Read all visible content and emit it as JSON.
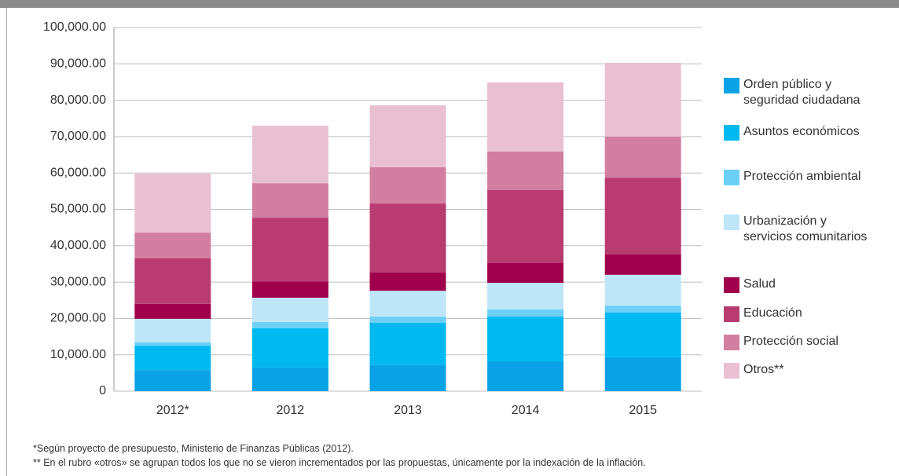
{
  "chart_data": {
    "type": "stacked_bar",
    "categories": [
      "2012*",
      "2012",
      "2013",
      "2014",
      "2015"
    ],
    "series": [
      {
        "name": "Orden público y seguridad ciudadana",
        "color": "#0aa2e6",
        "values": [
          5800,
          6500,
          7300,
          8200,
          9300
        ]
      },
      {
        "name": "Asuntos económicos",
        "color": "#00b9f0",
        "values": [
          6700,
          10800,
          11500,
          12300,
          12300
        ]
      },
      {
        "name": "Protección ambiental",
        "color": "#6ccff5",
        "values": [
          900,
          1700,
          1700,
          2000,
          1900
        ]
      },
      {
        "name": "Urbanización y servicios comunitarios",
        "color": "#bee6f8",
        "values": [
          6500,
          6700,
          7100,
          7300,
          8500
        ]
      },
      {
        "name": "Salud",
        "color": "#a0004b",
        "values": [
          4100,
          4500,
          5000,
          5400,
          5600
        ]
      },
      {
        "name": "Educación",
        "color": "#b83c70",
        "values": [
          12500,
          17500,
          19000,
          20100,
          21100
        ]
      },
      {
        "name": "Protección social",
        "color": "#d27ea1",
        "values": [
          7100,
          9500,
          10000,
          10600,
          11300
        ]
      },
      {
        "name": "Otros**",
        "color": "#e9c0d2",
        "values": [
          16200,
          15800,
          17000,
          19000,
          20300
        ]
      }
    ],
    "ylim": [
      0,
      100000
    ],
    "yticks": [
      0,
      {
        "value": 10000,
        "label": "10,000.00"
      },
      {
        "value": 20000,
        "label": "20,000.00"
      },
      {
        "value": 30000,
        "label": "30,000.00"
      },
      {
        "value": 40000,
        "label": "40,000.00"
      },
      {
        "value": 50000,
        "label": "50,000.00"
      },
      {
        "value": 60000,
        "label": "60,000.00"
      },
      {
        "value": 70000,
        "label": "70,000.00"
      },
      {
        "value": 80000,
        "label": "80,000.00"
      },
      {
        "value": 90000,
        "label": "90,000.00"
      },
      {
        "value": 100000,
        "label": "100,000.00"
      }
    ],
    "grid": true,
    "legend": "right",
    "annotations": [
      "*Según proyecto de presupuesto, Ministerio de Finanzas Públicas (2012).",
      "** En el rubro «otros» se agrupan todos los que no se vieron incrementados por las propuestas, únicamente por la indexación de la inflación."
    ]
  }
}
